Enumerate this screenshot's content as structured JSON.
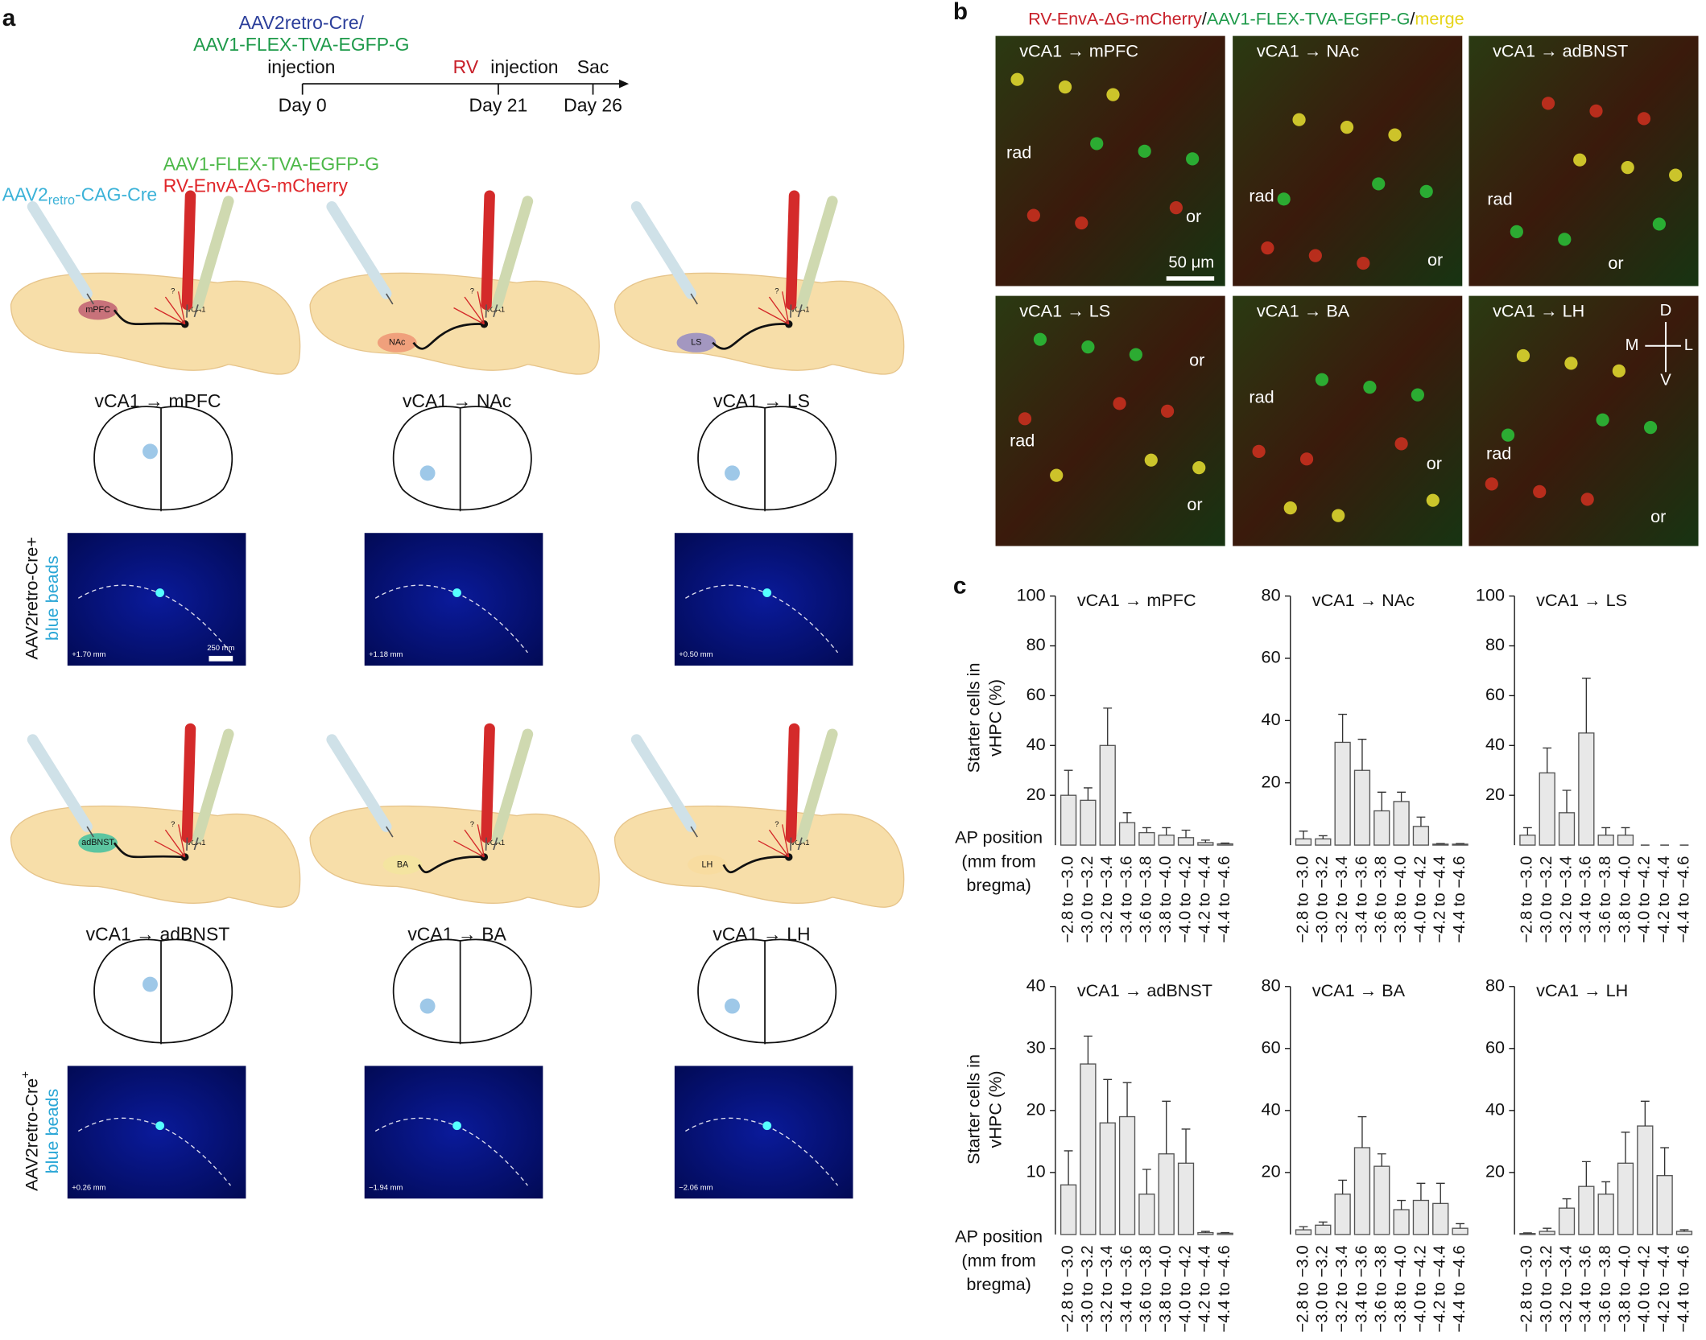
{
  "panel_a": {
    "label": "a",
    "timeline": {
      "virus_1": "AAV2retro-Cre/",
      "virus_2": "AAV1-FLEX-TVA-EGFP-G",
      "injection_1": "injection",
      "rv": "RV",
      "injection_2": "injection",
      "sac": "Sac",
      "days": [
        "Day 0",
        "Day 21",
        "Day 26"
      ]
    },
    "legend": {
      "tva": "AAV1-FLEX-TVA-EGFP-G",
      "rv": "RV-EnvA-ΔG-mCherry",
      "retro": "AAV2",
      "retro_sub": "retro",
      "retro_rest": "-CAG-Cre"
    },
    "vca1": "vCA1",
    "question": "?",
    "side_labels": [
      {
        "line1": "AAV2retro-Cre+",
        "line2": "blue beads"
      },
      {
        "line1": "AAV2retro-Cre",
        "sup": "+",
        "line2": "blue beads"
      }
    ],
    "scale": "250 mm",
    "experiments": [
      {
        "target": "mPFC",
        "title": "vCA1 → mPFC",
        "coord": "+1.70 mm"
      },
      {
        "target": "NAc",
        "title": "vCA1 → NAc",
        "coord": "+1.18 mm"
      },
      {
        "target": "LS",
        "title": "vCA1 → LS",
        "coord": "+0.50 mm"
      },
      {
        "target": "adBNST",
        "title": "vCA1 → adBNST",
        "coord": "+0.26 mm"
      },
      {
        "target": "BA",
        "title": "vCA1 → BA",
        "coord": "−1.94 mm"
      },
      {
        "target": "LH",
        "title": "vCA1 → LH",
        "coord": "−2.06 mm"
      }
    ]
  },
  "panel_b": {
    "label": "b",
    "title": [
      "RV-EnvA-ΔG-mCherry",
      "/",
      "AAV1-FLEX-TVA-EGFP-G",
      "/",
      "merge"
    ],
    "scale": "50 μm",
    "axes": [
      "D",
      "M",
      "L",
      "V"
    ],
    "images": [
      {
        "title": "vCA1 → mPFC",
        "labels": [
          "rad",
          "or"
        ]
      },
      {
        "title": "vCA1 → NAc",
        "labels": [
          "rad",
          "or"
        ]
      },
      {
        "title": "vCA1 → adBNST",
        "labels": [
          "rad",
          "or"
        ]
      },
      {
        "title": "vCA1 → LS",
        "labels": [
          "or",
          "rad",
          "or"
        ]
      },
      {
        "title": "vCA1 → BA",
        "labels": [
          "rad",
          "or"
        ]
      },
      {
        "title": "vCA1 → LH",
        "labels": [
          "rad",
          "or"
        ]
      }
    ]
  },
  "panel_c": {
    "label": "c",
    "y_label": [
      "Starter cells in",
      "vHPC (%)"
    ],
    "x_label": [
      "AP position",
      "(mm from",
      "bregma)"
    ]
  },
  "chart_data": [
    {
      "type": "bar",
      "title": "vCA1 → mPFC",
      "categories": [
        "−2.8 to −3.0",
        "−3.0 to −3.2",
        "−3.2 to −3.4",
        "−3.4 to −3.6",
        "−3.6 to −3.8",
        "−3.8 to −4.0",
        "−4.0 to −4.2",
        "−4.2 to −4.4",
        "−4.4 to −4.6"
      ],
      "values": [
        20,
        18,
        40,
        9,
        5,
        4,
        3,
        1,
        0.5
      ],
      "errors": [
        10,
        5,
        15,
        4,
        2,
        3,
        3,
        1,
        0.3
      ],
      "ylim": [
        0,
        100
      ],
      "yticks": [
        20,
        40,
        60,
        80,
        100
      ]
    },
    {
      "type": "bar",
      "title": "vCA1 → NAc",
      "categories": [
        "−2.8 to −3.0",
        "−3.0 to −3.2",
        "−3.2 to −3.4",
        "−3.4 to −3.6",
        "−3.6 to −3.8",
        "−3.8 to −4.0",
        "−4.0 to −4.2",
        "−4.2 to −4.4",
        "−4.4 to −4.6"
      ],
      "values": [
        2,
        2,
        33,
        24,
        11,
        14,
        6,
        0.3,
        0.3
      ],
      "errors": [
        2.5,
        1,
        9,
        10,
        6,
        3,
        3,
        0.2,
        0.2
      ],
      "ylim": [
        0,
        80
      ],
      "yticks": [
        20,
        40,
        60,
        80
      ]
    },
    {
      "type": "bar",
      "title": "vCA1 → LS",
      "categories": [
        "−2.8 to −3.0",
        "−3.0 to −3.2",
        "−3.2 to −3.4",
        "−3.4 to −3.6",
        "−3.6 to −3.8",
        "−3.8 to −4.0",
        "−4.0 to −4.2",
        "−4.2 to −4.4",
        "−4.4 to −4.6"
      ],
      "values": [
        4,
        29,
        13,
        45,
        4,
        4,
        0,
        0,
        0
      ],
      "errors": [
        3,
        10,
        9,
        22,
        3,
        3,
        0,
        0,
        0
      ],
      "ylim": [
        0,
        100
      ],
      "yticks": [
        20,
        40,
        60,
        80,
        100
      ]
    },
    {
      "type": "bar",
      "title": "vCA1 → adBNST",
      "categories": [
        "−2.8 to −3.0",
        "−3.0 to −3.2",
        "−3.2 to −3.4",
        "−3.4 to −3.6",
        "−3.6 to −3.8",
        "−3.8 to −4.0",
        "−4.0 to −4.2",
        "−4.2 to −4.4",
        "−4.4 to −4.6"
      ],
      "values": [
        8,
        27.5,
        18,
        19,
        6.5,
        13,
        11.5,
        0.3,
        0.2
      ],
      "errors": [
        5.5,
        4.5,
        7,
        5.5,
        4,
        8.5,
        5.5,
        0.2,
        0.1
      ],
      "ylim": [
        0,
        40
      ],
      "yticks": [
        10,
        20,
        30,
        40
      ]
    },
    {
      "type": "bar",
      "title": "vCA1 → BA",
      "categories": [
        "−2.8 to −3.0",
        "−3.0 to −3.2",
        "−3.2 to −3.4",
        "−3.4 to −3.6",
        "−3.6 to −3.8",
        "−3.8 to −4.0",
        "−4.0 to −4.2",
        "−4.2 to −4.4",
        "−4.4 to −4.6"
      ],
      "values": [
        1.5,
        3,
        13,
        28,
        22,
        8,
        11,
        10,
        2
      ],
      "errors": [
        1,
        1,
        4.5,
        10,
        4,
        3,
        5.5,
        6.5,
        1.5
      ],
      "ylim": [
        0,
        80
      ],
      "yticks": [
        20,
        40,
        60,
        80
      ]
    },
    {
      "type": "bar",
      "title": "vCA1 → LH",
      "categories": [
        "−2.8 to −3.0",
        "−3.0 to −3.2",
        "−3.2 to −3.4",
        "−3.4 to −3.6",
        "−3.6 to −3.8",
        "−3.8 to −4.0",
        "−4.0 to −4.2",
        "−4.2 to −4.4",
        "−4.4 to −4.6"
      ],
      "values": [
        0.3,
        1,
        8.5,
        15.5,
        13,
        23,
        35,
        19,
        1
      ],
      "errors": [
        0.2,
        1,
        3,
        8,
        4,
        10,
        8,
        9,
        0.5
      ],
      "ylim": [
        0,
        80
      ],
      "yticks": [
        20,
        40,
        60,
        80
      ]
    }
  ]
}
